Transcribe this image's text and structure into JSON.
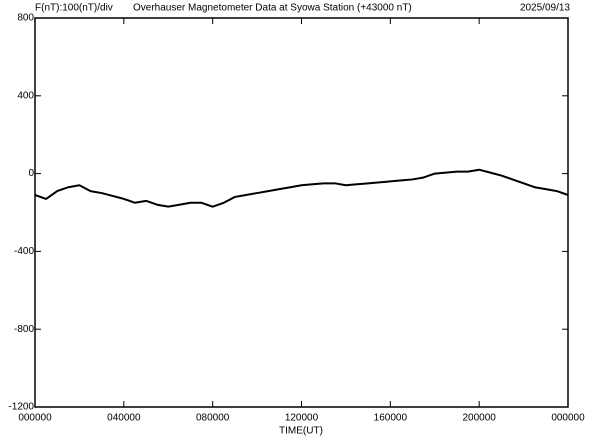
{
  "chart_data": {
    "type": "line",
    "y_label": "F(nT):100(nT)/div",
    "title": "Overhauser Magnetometer Data at Syowa Station (+43000 nT)",
    "date": "2025/09/13",
    "x_label": "TIME(UT)",
    "x": [
      0,
      0.5,
      1,
      1.5,
      2,
      2.5,
      3,
      3.5,
      4,
      4.5,
      5,
      5.5,
      6,
      6.5,
      7,
      7.5,
      8,
      8.5,
      9,
      9.5,
      10,
      10.5,
      11,
      11.5,
      12,
      12.5,
      13,
      13.5,
      14,
      14.5,
      15,
      15.5,
      16,
      16.5,
      17,
      17.5,
      18,
      18.5,
      19,
      19.5,
      20,
      20.5,
      21,
      21.5,
      22,
      22.5,
      23,
      23.5,
      24
    ],
    "series": [
      {
        "color": "#000000",
        "values": [
          -110,
          -130,
          -90,
          -70,
          -60,
          -90,
          -100,
          -115,
          -130,
          -150,
          -140,
          -160,
          -170,
          -160,
          -150,
          -150,
          -170,
          -150,
          -120,
          -110,
          -100,
          -90,
          -80,
          -70,
          -60,
          -55,
          -50,
          -50,
          -60,
          -55,
          -50,
          -45,
          -40,
          -35,
          -30,
          -20,
          0,
          5,
          10,
          10,
          20,
          5,
          -10,
          -30,
          -50,
          -70,
          -80,
          -90,
          -110
        ]
      }
    ],
    "xlim": [
      0,
      24
    ],
    "xticks": [
      {
        "value": 0,
        "label": "000000"
      },
      {
        "value": 4,
        "label": "040000"
      },
      {
        "value": 8,
        "label": "080000"
      },
      {
        "value": 12,
        "label": "120000"
      },
      {
        "value": 16,
        "label": "160000"
      },
      {
        "value": 20,
        "label": "200000"
      },
      {
        "value": 24,
        "label": "000000"
      }
    ],
    "ylim": [
      -1200,
      800
    ],
    "yticks": [
      -1200,
      -800,
      -400,
      0,
      400,
      800
    ]
  }
}
